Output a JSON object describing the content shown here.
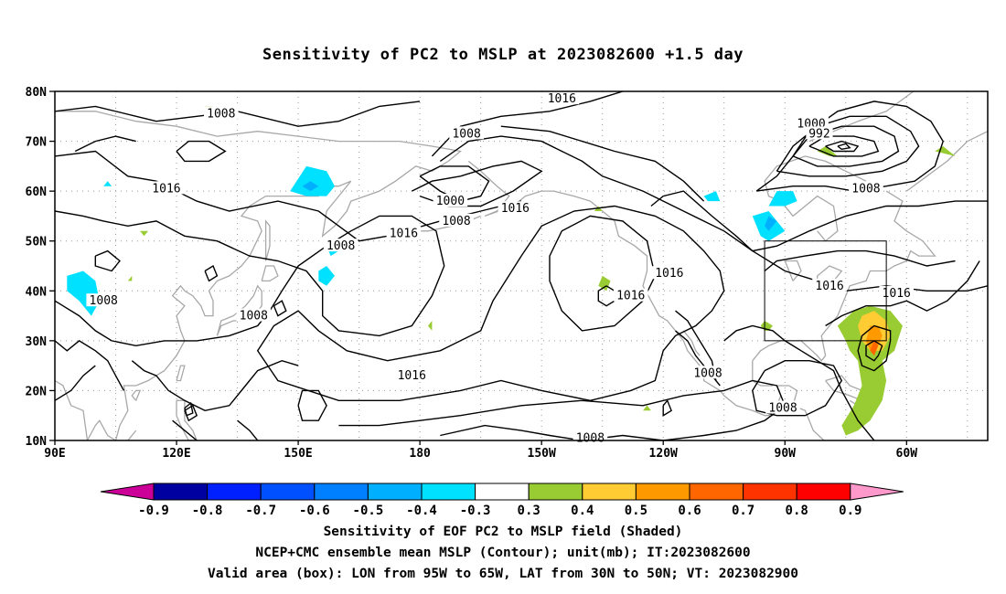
{
  "title": "Sensitivity of PC2 to MSLP at 2023082600 +1.5 day",
  "map": {
    "lat_labels": [
      "80N",
      "70N",
      "60N",
      "50N",
      "40N",
      "30N",
      "20N",
      "10N"
    ],
    "lon_labels": [
      "90E",
      "120E",
      "150E",
      "180",
      "150W",
      "120W",
      "90W",
      "60W"
    ],
    "contour_labels": [
      {
        "text": "1008",
        "lon": 131,
        "lat": 75.5
      },
      {
        "text": "1016",
        "lon": 117.5,
        "lat": 60.5
      },
      {
        "text": "1008",
        "lon": 102,
        "lat": 38
      },
      {
        "text": "1008",
        "lon": 139,
        "lat": 35
      },
      {
        "text": "1008",
        "lon": 191.5,
        "lat": 71.5
      },
      {
        "text": "1000",
        "lon": 187.5,
        "lat": 58
      },
      {
        "text": "1008",
        "lon": 189,
        "lat": 54
      },
      {
        "text": "1008",
        "lon": 160.5,
        "lat": 49
      },
      {
        "text": "1016",
        "lon": 176,
        "lat": 51.5
      },
      {
        "text": "1016",
        "lon": 215,
        "lat": 78.5
      },
      {
        "text": "1016",
        "lon": 203.5,
        "lat": 56.5
      },
      {
        "text": "1016",
        "lon": 232,
        "lat": 39
      },
      {
        "text": "1016",
        "lon": 241.5,
        "lat": 43.5
      },
      {
        "text": "1000",
        "lon": 276.5,
        "lat": 73.5
      },
      {
        "text": "992",
        "lon": 278.5,
        "lat": 71.5
      },
      {
        "text": "1008",
        "lon": 290,
        "lat": 60.5
      },
      {
        "text": "1016",
        "lon": 281,
        "lat": 41
      },
      {
        "text": "1016",
        "lon": 297.5,
        "lat": 39.5
      },
      {
        "text": "1008",
        "lon": 251,
        "lat": 23.5
      },
      {
        "text": "1008",
        "lon": 269.5,
        "lat": 16.5
      },
      {
        "text": "1016",
        "lon": 178,
        "lat": 23
      },
      {
        "text": "1008",
        "lon": 222,
        "lat": 10.5
      }
    ],
    "valid_box": {
      "lon_w": 265,
      "lon_e": 295,
      "lat_s": 30,
      "lat_n": 50
    }
  },
  "colorbar": {
    "labels": [
      "-0.9",
      "-0.8",
      "-0.7",
      "-0.6",
      "-0.5",
      "-0.4",
      "-0.3",
      "0.3",
      "0.4",
      "0.5",
      "0.6",
      "0.7",
      "0.8",
      "0.9"
    ],
    "colors": [
      "#0000a0",
      "#0020ff",
      "#0050ff",
      "#0080ff",
      "#00b0ff",
      "#00e0ff",
      "#ffffff",
      "#99cc33",
      "#ffcc33",
      "#ff9900",
      "#ff6600",
      "#ff3300",
      "#ff0000"
    ],
    "low_color": "#cc0099",
    "high_color": "#ff99cc"
  },
  "footer": {
    "line1": "Sensitivity of EOF PC2 to MSLP field (Shaded)",
    "line2": "NCEP+CMC ensemble mean MSLP (Contour); unit(mb); IT:2023082600",
    "line3": "Valid area (box): LON from 95W to 65W, LAT from 30N to 50N; VT: 2023082900"
  }
}
